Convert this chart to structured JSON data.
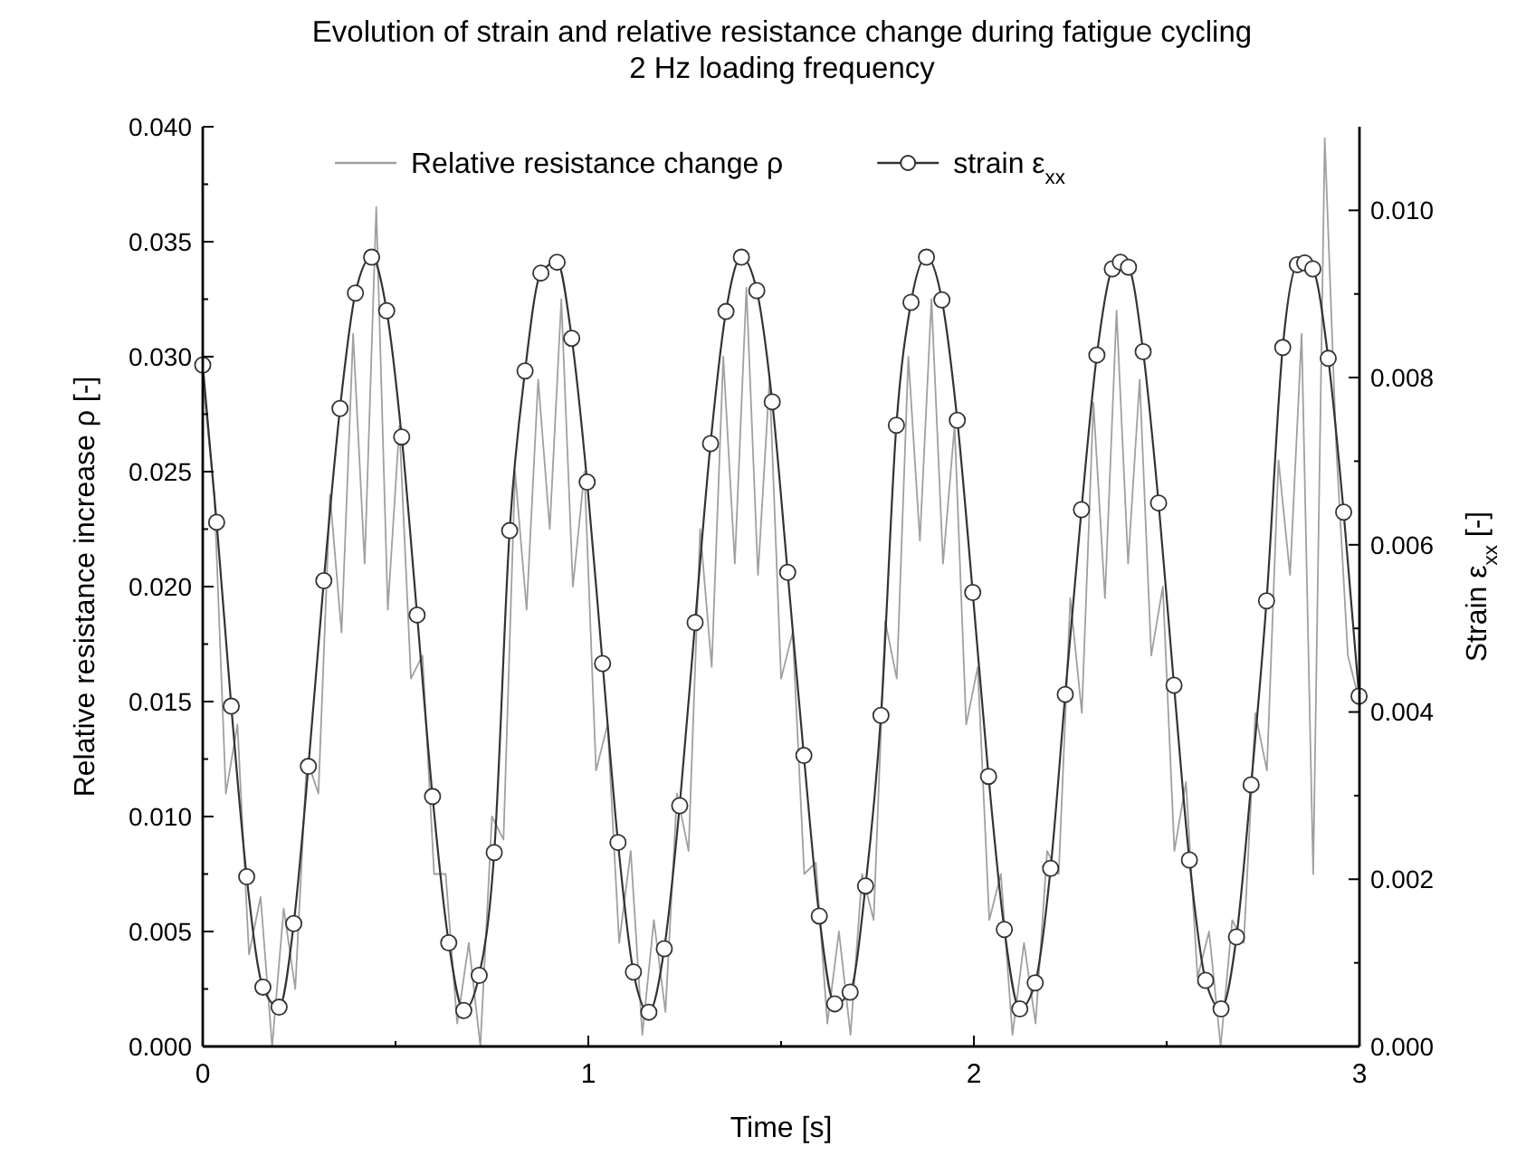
{
  "chart_data": {
    "type": "line",
    "title": "Evolution of strain and relative resistance change during fatigue cycling",
    "subtitle": "2 Hz loading frequency",
    "xlabel": "Time [s]",
    "ylabel": "Relative resistance increase ρ [-]",
    "y2label": "Strain ε$_{xx}$ [-]",
    "xlim": [
      0,
      3
    ],
    "xticks": [
      0,
      {
        "value": 0.5,
        "label": null
      },
      1,
      {
        "value": 1.5,
        "label": null
      },
      2,
      {
        "value": 2.5,
        "label": null
      },
      3
    ],
    "ylim": [
      0,
      0.04
    ],
    "yticks": [
      {
        "value": 0,
        "label": "0.000"
      },
      {
        "value": 0.0025,
        "label": null
      },
      {
        "value": 0.005,
        "label": "0.005"
      },
      {
        "value": 0.0075,
        "label": null
      },
      {
        "value": 0.01,
        "label": "0.010"
      },
      {
        "value": 0.0125,
        "label": null
      },
      {
        "value": 0.015,
        "label": "0.015"
      },
      {
        "value": 0.0175,
        "label": null
      },
      {
        "value": 0.02,
        "label": "0.020"
      },
      {
        "value": 0.0225,
        "label": null
      },
      {
        "value": 0.025,
        "label": "0.025"
      },
      {
        "value": 0.0275,
        "label": null
      },
      {
        "value": 0.03,
        "label": "0.030"
      },
      {
        "value": 0.0325,
        "label": null
      },
      {
        "value": 0.035,
        "label": "0.035"
      },
      {
        "value": 0.0375,
        "label": null
      },
      {
        "value": 0.04,
        "label": "0.040"
      }
    ],
    "y2lim": [
      0,
      0.011
    ],
    "y2ticks": [
      {
        "value": 0,
        "label": "0.000"
      },
      {
        "value": 0.001,
        "label": null
      },
      {
        "value": 0.002,
        "label": "0.002"
      },
      {
        "value": 0.003,
        "label": null
      },
      {
        "value": 0.004,
        "label": "0.004"
      },
      {
        "value": 0.005,
        "label": null
      },
      {
        "value": 0.006,
        "label": "0.006"
      },
      {
        "value": 0.007,
        "label": null
      },
      {
        "value": 0.008,
        "label": "0.008"
      },
      {
        "value": 0.009,
        "label": null
      },
      {
        "value": 0.01,
        "label": "0.010"
      }
    ],
    "grid": false,
    "legend": "top",
    "series": [
      {
        "name": "Relative resistance change ρ",
        "color": "#a0a0a0",
        "marker": "none",
        "x": [
          0,
          0.03,
          0.06,
          0.09,
          0.12,
          0.15,
          0.18,
          0.21,
          0.24,
          0.27,
          0.3,
          0.33,
          0.36,
          0.39,
          0.42,
          0.45,
          0.48,
          0.51,
          0.54,
          0.57,
          0.6,
          0.63,
          0.66,
          0.69,
          0.72,
          0.75,
          0.78,
          0.81,
          0.84,
          0.87,
          0.9,
          0.93,
          0.96,
          0.99,
          1.02,
          1.05,
          1.08,
          1.11,
          1.14,
          1.17,
          1.2,
          1.23,
          1.26,
          1.29,
          1.32,
          1.35,
          1.38,
          1.41,
          1.44,
          1.47,
          1.5,
          1.53,
          1.56,
          1.59,
          1.62,
          1.65,
          1.68,
          1.71,
          1.74,
          1.77,
          1.8,
          1.83,
          1.86,
          1.89,
          1.92,
          1.95,
          1.98,
          2.01,
          2.04,
          2.07,
          2.1,
          2.13,
          2.16,
          2.19,
          2.22,
          2.25,
          2.28,
          2.31,
          2.34,
          2.37,
          2.4,
          2.43,
          2.46,
          2.49,
          2.52,
          2.55,
          2.58,
          2.61,
          2.64,
          2.67,
          2.7,
          2.73,
          2.76,
          2.79,
          2.82,
          2.85,
          2.88,
          2.91,
          2.94,
          2.97,
          3.0
        ],
        "values": [
          0.029,
          0.024,
          0.011,
          0.014,
          0.004,
          0.0065,
          0.0,
          0.006,
          0.0025,
          0.0125,
          0.011,
          0.024,
          0.018,
          0.031,
          0.021,
          0.0365,
          0.019,
          0.027,
          0.016,
          0.017,
          0.0075,
          0.0075,
          0.001,
          0.0045,
          0.0,
          0.01,
          0.009,
          0.025,
          0.019,
          0.029,
          0.0225,
          0.0325,
          0.02,
          0.025,
          0.012,
          0.014,
          0.0045,
          0.0085,
          0.0005,
          0.0055,
          0.0015,
          0.011,
          0.0085,
          0.0225,
          0.0165,
          0.03,
          0.021,
          0.033,
          0.0205,
          0.029,
          0.016,
          0.018,
          0.0075,
          0.008,
          0.001,
          0.005,
          0.0005,
          0.0075,
          0.0055,
          0.0185,
          0.016,
          0.03,
          0.022,
          0.0325,
          0.021,
          0.027,
          0.014,
          0.0165,
          0.0055,
          0.0075,
          0.0005,
          0.0045,
          0.001,
          0.0085,
          0.0075,
          0.0195,
          0.0145,
          0.028,
          0.0195,
          0.032,
          0.021,
          0.029,
          0.017,
          0.02,
          0.0085,
          0.0115,
          0.003,
          0.005,
          0.0,
          0.0055,
          0.0045,
          0.0145,
          0.012,
          0.0255,
          0.0205,
          0.031,
          0.0075,
          0.0395,
          0.026,
          0.017,
          0.015
        ]
      },
      {
        "name": "strain ε$_{xx}$",
        "color": "#333333",
        "axis": "y2",
        "marker": "circle",
        "x": [
          0,
          0.036,
          0.074,
          0.114,
          0.156,
          0.198,
          0.236,
          0.274,
          0.314,
          0.356,
          0.396,
          0.438,
          0.477,
          0.516,
          0.556,
          0.596,
          0.638,
          0.677,
          0.717,
          0.756,
          0.796,
          0.836,
          0.877,
          0.919,
          0.957,
          0.997,
          1.037,
          1.077,
          1.117,
          1.157,
          1.197,
          1.237,
          1.277,
          1.317,
          1.357,
          1.397,
          1.437,
          1.477,
          1.517,
          1.559,
          1.599,
          1.639,
          1.679,
          1.719,
          1.759,
          1.799,
          1.837,
          1.877,
          1.917,
          1.957,
          1.997,
          2.038,
          2.079,
          2.119,
          2.159,
          2.199,
          2.237,
          2.279,
          2.319,
          2.359,
          2.38,
          2.401,
          2.439,
          2.479,
          2.519,
          2.559,
          2.601,
          2.641,
          2.681,
          2.719,
          2.759,
          2.801,
          2.839,
          2.858,
          2.879,
          2.919,
          2.959,
          2.999
        ],
        "values": [
          0.00815,
          0.00627,
          0.00407,
          0.00203,
          0.00071,
          0.00047,
          0.00147,
          0.00335,
          0.00557,
          0.00763,
          0.00901,
          0.00944,
          0.0088,
          0.00729,
          0.00516,
          0.00299,
          0.00124,
          0.00043,
          0.00085,
          0.00232,
          0.00617,
          0.00808,
          0.00925,
          0.00938,
          0.00847,
          0.00675,
          0.00458,
          0.00244,
          0.00089,
          0.00041,
          0.00117,
          0.00288,
          0.00507,
          0.00721,
          0.00879,
          0.00944,
          0.00904,
          0.00771,
          0.00567,
          0.00348,
          0.00156,
          0.00051,
          0.00065,
          0.00192,
          0.00396,
          0.00743,
          0.0089,
          0.00944,
          0.00893,
          0.00749,
          0.00543,
          0.00323,
          0.0014,
          0.00045,
          0.00076,
          0.00213,
          0.00421,
          0.00642,
          0.00827,
          0.0093,
          0.00938,
          0.00932,
          0.00831,
          0.0065,
          0.00432,
          0.00223,
          0.00079,
          0.00045,
          0.00131,
          0.00313,
          0.00533,
          0.00836,
          0.00935,
          0.00937,
          0.0093,
          0.00823,
          0.00639,
          0.00419
        ]
      }
    ]
  }
}
